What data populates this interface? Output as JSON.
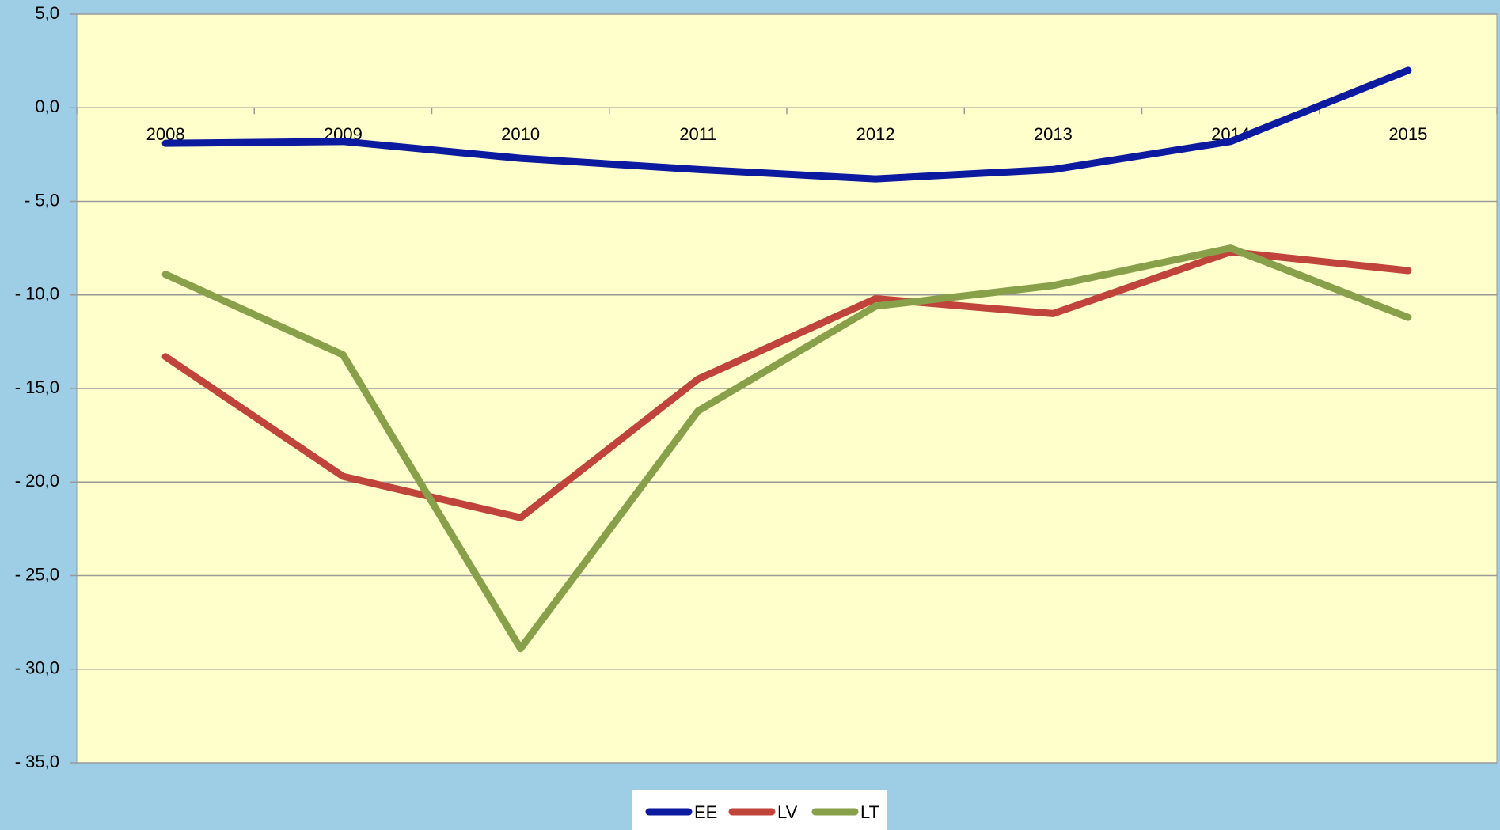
{
  "chart_data": {
    "type": "line",
    "categories": [
      "2008",
      "2009",
      "2010",
      "2011",
      "2012",
      "2013",
      "2014",
      "2015"
    ],
    "series": [
      {
        "name": "EE",
        "color": "#0b1a9e",
        "values": [
          -1.9,
          -1.8,
          -2.7,
          -3.3,
          -3.8,
          -3.3,
          -1.8,
          2.0
        ]
      },
      {
        "name": "LV",
        "color": "#c0443a",
        "values": [
          -13.3,
          -19.7,
          -21.9,
          -14.5,
          -10.2,
          -11.0,
          -7.7,
          -8.7
        ]
      },
      {
        "name": "LT",
        "color": "#88a04a",
        "values": [
          -8.9,
          -13.2,
          -28.9,
          -16.2,
          -10.6,
          -9.5,
          -7.5,
          -11.2
        ]
      }
    ],
    "ylim": [
      -35,
      5
    ],
    "yticks": [
      {
        "value": -35,
        "label": "- 35,0"
      },
      {
        "value": -30,
        "label": "- 30,0"
      },
      {
        "value": -25,
        "label": "- 25,0"
      },
      {
        "value": -20,
        "label": "- 20,0"
      },
      {
        "value": -15,
        "label": "- 15,0"
      },
      {
        "value": -10,
        "label": "- 10,0"
      },
      {
        "value": -5,
        "label": "- 5,0"
      },
      {
        "value": 0,
        "label": "0,0"
      },
      {
        "value": 5,
        "label": "5,0"
      }
    ],
    "grid": true,
    "legend": "bottom"
  }
}
